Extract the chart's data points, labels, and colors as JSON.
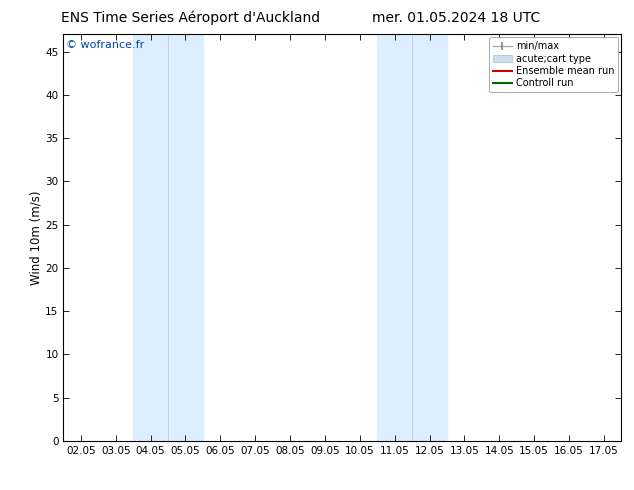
{
  "title_left": "ENS Time Series Aéroport d'Auckland",
  "title_right": "mer. 01.05.2024 18 UTC",
  "ylabel": "Wind 10m (m/s)",
  "watermark": "© wofrance.fr",
  "xtick_labels": [
    "02.05",
    "03.05",
    "04.05",
    "05.05",
    "06.05",
    "07.05",
    "08.05",
    "09.05",
    "10.05",
    "11.05",
    "12.05",
    "13.05",
    "14.05",
    "15.05",
    "16.05",
    "17.05"
  ],
  "ytick_values": [
    0,
    5,
    10,
    15,
    20,
    25,
    30,
    35,
    40,
    45
  ],
  "ylim": [
    0,
    47
  ],
  "xlim": [
    -0.5,
    15.5
  ],
  "shaded_bands": [
    {
      "x_start": 1.5,
      "x_end": 3.5,
      "color": "#ddeeff"
    },
    {
      "x_start": 8.5,
      "x_end": 10.5,
      "color": "#ddeeff"
    }
  ],
  "band_dividers": [
    2.5,
    9.5
  ],
  "legend_entries": [
    {
      "label": "min/max",
      "color": "#aaaaaa"
    },
    {
      "label": "acute;cart type",
      "color": "#cce0f0"
    },
    {
      "label": "Ensemble mean run",
      "color": "#cc0000"
    },
    {
      "label": "Controll run",
      "color": "#006600"
    }
  ],
  "bg_color": "#ffffff",
  "plot_bg_color": "#ffffff",
  "title_fontsize": 10,
  "label_fontsize": 8.5,
  "tick_fontsize": 7.5,
  "watermark_fontsize": 8
}
